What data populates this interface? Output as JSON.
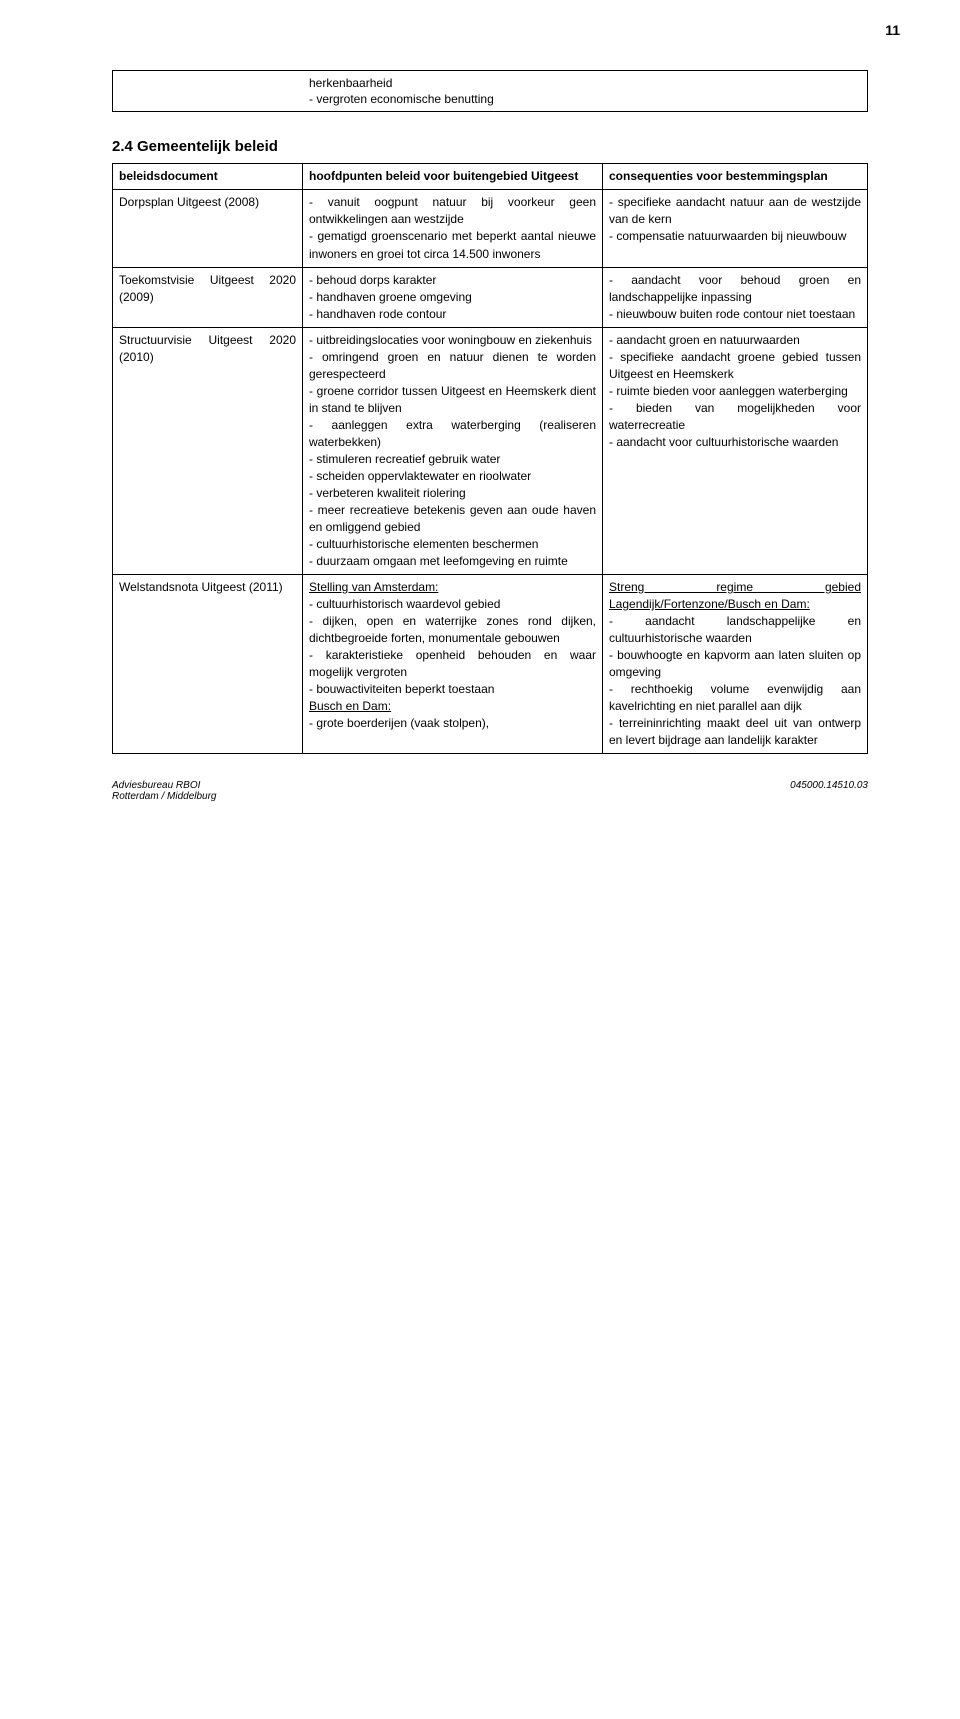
{
  "page_number": "11",
  "top_row": {
    "col1": "",
    "col2": "herkenbaarheid\n- vergroten economische benutting",
    "col3": ""
  },
  "section_heading": "2.4 Gemeentelijk beleid",
  "header_row": {
    "c1": "beleidsdocument",
    "c2": "hoofdpunten beleid voor buitengebied Uitgeest",
    "c3": "consequenties voor bestemmingsplan"
  },
  "rows": [
    {
      "c1": "Dorpsplan Uitgeest (2008)",
      "c2": "- vanuit oogpunt natuur bij voorkeur geen ontwikkelingen aan westzijde\n- gematigd groenscenario met beperkt aantal nieuwe inwoners en groei tot circa 14.500 inwoners",
      "c3": "- specifieke aandacht natuur aan de westzijde van de kern\n- compensatie natuurwaarden bij nieuwbouw"
    },
    {
      "c1": "Toekomstvisie Uitgeest 2020 (2009)",
      "c2": "- behoud dorps karakter\n- handhaven groene omgeving\n- handhaven rode contour",
      "c3": "- aandacht voor behoud groen en landschappelijke inpassing\n- nieuwbouw buiten rode contour niet toestaan"
    },
    {
      "c1": "Structuurvisie Uitgeest 2020 (2010)",
      "c2": "- uitbreidingslocaties voor woningbouw en ziekenhuis\n- omringend groen en natuur dienen te worden gerespecteerd\n- groene corridor tussen Uitgeest en Heemskerk dient in stand te blijven\n- aanleggen extra waterberging (realiseren waterbekken)\n- stimuleren recreatief gebruik water\n- scheiden oppervlaktewater en rioolwater\n- verbeteren kwaliteit riolering\n- meer recreatieve betekenis geven aan oude haven en omliggend gebied\n- cultuurhistorische elementen beschermen\n- duurzaam omgaan met leefomgeving en ruimte",
      "c3": "- aandacht groen en natuurwaarden\n- specifieke aandacht groene gebied tussen Uitgeest en Heemskerk\n- ruimte bieden voor aanleggen waterberging\n- bieden van mogelijkheden voor waterrecreatie\n- aandacht voor cultuurhistorische waarden"
    },
    {
      "c1": "Welstandsnota Uitgeest (2011)",
      "c2_parts": [
        {
          "u": true,
          "t": "Stelling van Amsterdam:"
        },
        {
          "t": "- cultuurhistorisch waardevol gebied\n- dijken, open en waterrijke zones rond dijken, dichtbegroeide forten, monumentale gebouwen\n- karakteristieke openheid behouden en waar mogelijk vergroten\n- bouwactiviteiten beperkt toestaan"
        },
        {
          "u": true,
          "t": "Busch en Dam:"
        },
        {
          "t": "- grote boerderijen (vaak stolpen),"
        }
      ],
      "c3_parts": [
        {
          "u": true,
          "t": "Streng regime gebied Lagendijk/Fortenzone/Busch en Dam:"
        },
        {
          "t": "- aandacht landschappelijke en cultuurhistorische waarden\n- bouwhoogte en kapvorm aan laten sluiten op omgeving\n- rechthoekig volume evenwijdig aan kavelrichting en niet parallel aan dijk\n- terreininrichting maakt deel uit van ontwerp en levert bijdrage aan landelijk karakter"
        }
      ]
    }
  ],
  "footer": {
    "left": "Adviesbureau RBOI\nRotterdam / Middelburg",
    "right": "045000.14510.03"
  }
}
